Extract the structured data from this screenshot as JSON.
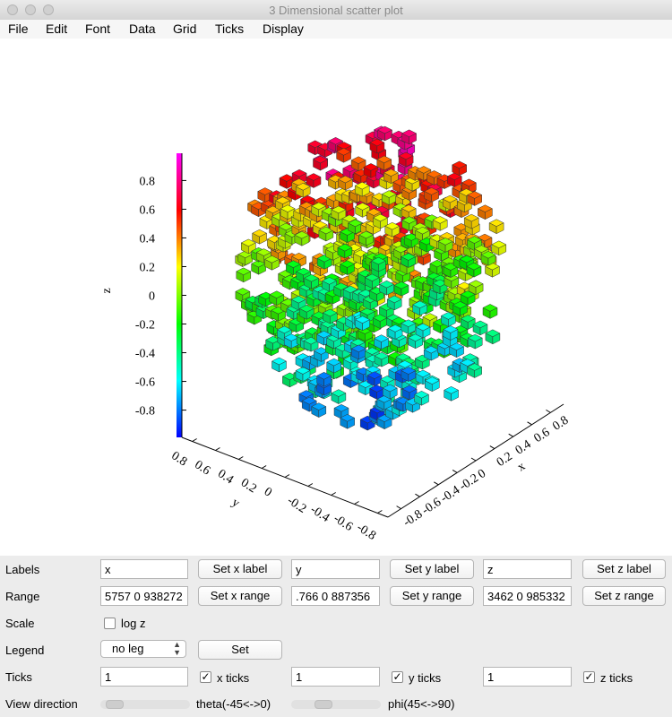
{
  "window": {
    "title": "3 Dimensional scatter plot"
  },
  "menu": [
    "File",
    "Edit",
    "Font",
    "Data",
    "Grid",
    "Ticks",
    "Display"
  ],
  "controls": {
    "labels_label": "Labels",
    "range_label": "Range",
    "scale_label": "Scale",
    "legend_label": "Legend",
    "ticks_label": "Ticks",
    "view_label": "View direction",
    "x_label_value": "x",
    "y_label_value": "y",
    "z_label_value": "z",
    "set_x_label": "Set x label",
    "set_y_label": "Set y label",
    "set_z_label": "Set z label",
    "x_range_value": "5757 0 938272",
    "y_range_value": ".766 0 887356",
    "z_range_value": "3462 0 985332",
    "set_x_range": "Set x range",
    "set_y_range": "Set y range",
    "set_z_range": "Set z range",
    "log_z": "log z",
    "legend_value": "no leg",
    "set_button": "Set",
    "x_ticks_value": "1",
    "y_ticks_value": "1",
    "z_ticks_value": "1",
    "x_ticks": "x ticks",
    "y_ticks": "y ticks",
    "z_ticks": "z ticks",
    "theta_label": "theta(-45<->0)",
    "phi_label": "phi(45<->90)"
  },
  "chart_data": {
    "type": "scatter",
    "title": "",
    "xlabel": "x",
    "ylabel": "y",
    "zlabel": "z",
    "xticks": [
      "-0.8",
      "-0.6",
      "-0.4",
      "-0.2",
      "0",
      "0.2",
      "0.4",
      "0.6",
      "0.8"
    ],
    "yticks": [
      "-0.8",
      "-0.6",
      "-0.4",
      "-0.2",
      "0",
      "0.2",
      "0.4",
      "0.6",
      "0.8"
    ],
    "zticks": [
      "-0.8",
      "-0.6",
      "-0.4",
      "-0.2",
      "0",
      "0.2",
      "0.4",
      "0.6",
      "0.8"
    ],
    "xlim": [
      -0.94,
      0.94
    ],
    "ylim": [
      -0.89,
      0.89
    ],
    "zlim": [
      -0.99,
      0.99
    ],
    "colormap": [
      "#0000ff",
      "#00ffff",
      "#00ff00",
      "#ffff00",
      "#ff0000",
      "#ff00ff"
    ],
    "point_count": 600,
    "point_distribution": "uniform in unit sphere, colored by z"
  }
}
